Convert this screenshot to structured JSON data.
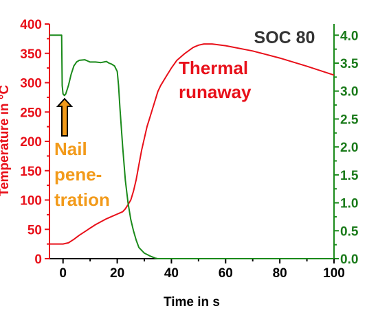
{
  "chart_data": {
    "type": "line",
    "xlabel": "Time in s",
    "ylabel_left": "Temperature in °C",
    "ylabel_right": "",
    "xlim": [
      -5,
      100
    ],
    "ylim_left": [
      0,
      400
    ],
    "ylim_right": [
      0.0,
      4.2
    ],
    "x_ticks": [
      "0",
      "20",
      "40",
      "60",
      "80",
      "100"
    ],
    "y_left_ticks": [
      "0",
      "50",
      "100",
      "150",
      "200",
      "250",
      "300",
      "350",
      "400"
    ],
    "y_right_ticks": [
      "0.0",
      "0.5",
      "1.0",
      "1.5",
      "2.0",
      "2.5",
      "3.0",
      "3.5",
      "4.0"
    ],
    "grid": false,
    "series": [
      {
        "name": "",
        "axis": "left",
        "color": "#e8101a",
        "x": [
          -5,
          -1,
          0,
          2,
          4,
          6,
          8,
          10,
          12,
          14,
          16,
          18,
          20,
          21,
          22,
          23,
          24,
          25,
          26,
          27,
          28,
          29,
          30,
          31,
          32,
          33,
          34,
          35,
          36,
          38,
          40,
          42,
          45,
          48,
          50,
          52,
          55,
          60,
          70,
          80,
          90,
          100
        ],
        "y": [
          25,
          25,
          25,
          27,
          33,
          40,
          46,
          52,
          58,
          63,
          68,
          72,
          76,
          78,
          80,
          85,
          92,
          100,
          115,
          135,
          160,
          185,
          205,
          225,
          240,
          255,
          270,
          285,
          295,
          310,
          325,
          338,
          350,
          360,
          364,
          366,
          366,
          363,
          354,
          342,
          328,
          313
        ]
      },
      {
        "name": "",
        "axis": "right",
        "color": "#1a8a1a",
        "x": [
          -5,
          -0.5,
          -0.3,
          0,
          0.5,
          1,
          2,
          3,
          4,
          5,
          6,
          8,
          10,
          12,
          14,
          16,
          17,
          18,
          19,
          20,
          20.5,
          21,
          22,
          23,
          24,
          25,
          26,
          27,
          28,
          30,
          32,
          34,
          35,
          100
        ],
        "y": [
          4.0,
          4.0,
          3.1,
          2.95,
          2.92,
          2.95,
          3.1,
          3.3,
          3.45,
          3.52,
          3.55,
          3.56,
          3.52,
          3.52,
          3.51,
          3.53,
          3.5,
          3.48,
          3.45,
          3.35,
          3.1,
          2.7,
          2.0,
          1.4,
          1.0,
          0.7,
          0.5,
          0.33,
          0.2,
          0.1,
          0.05,
          0.01,
          0.0,
          0.0
        ]
      }
    ],
    "annotations": [
      {
        "name": "soc-label",
        "text": "SOC 80",
        "color": "#333333"
      },
      {
        "name": "thermal-line1",
        "text": "Thermal",
        "color": "#e8101a"
      },
      {
        "name": "thermal-line2",
        "text": "runaway",
        "color": "#e8101a"
      },
      {
        "name": "nail-line1",
        "text": "Nail",
        "color": "#f29a1a"
      },
      {
        "name": "nail-line2",
        "text": "pene-",
        "color": "#f29a1a"
      },
      {
        "name": "nail-line3",
        "text": "tration",
        "color": "#f29a1a"
      }
    ]
  }
}
